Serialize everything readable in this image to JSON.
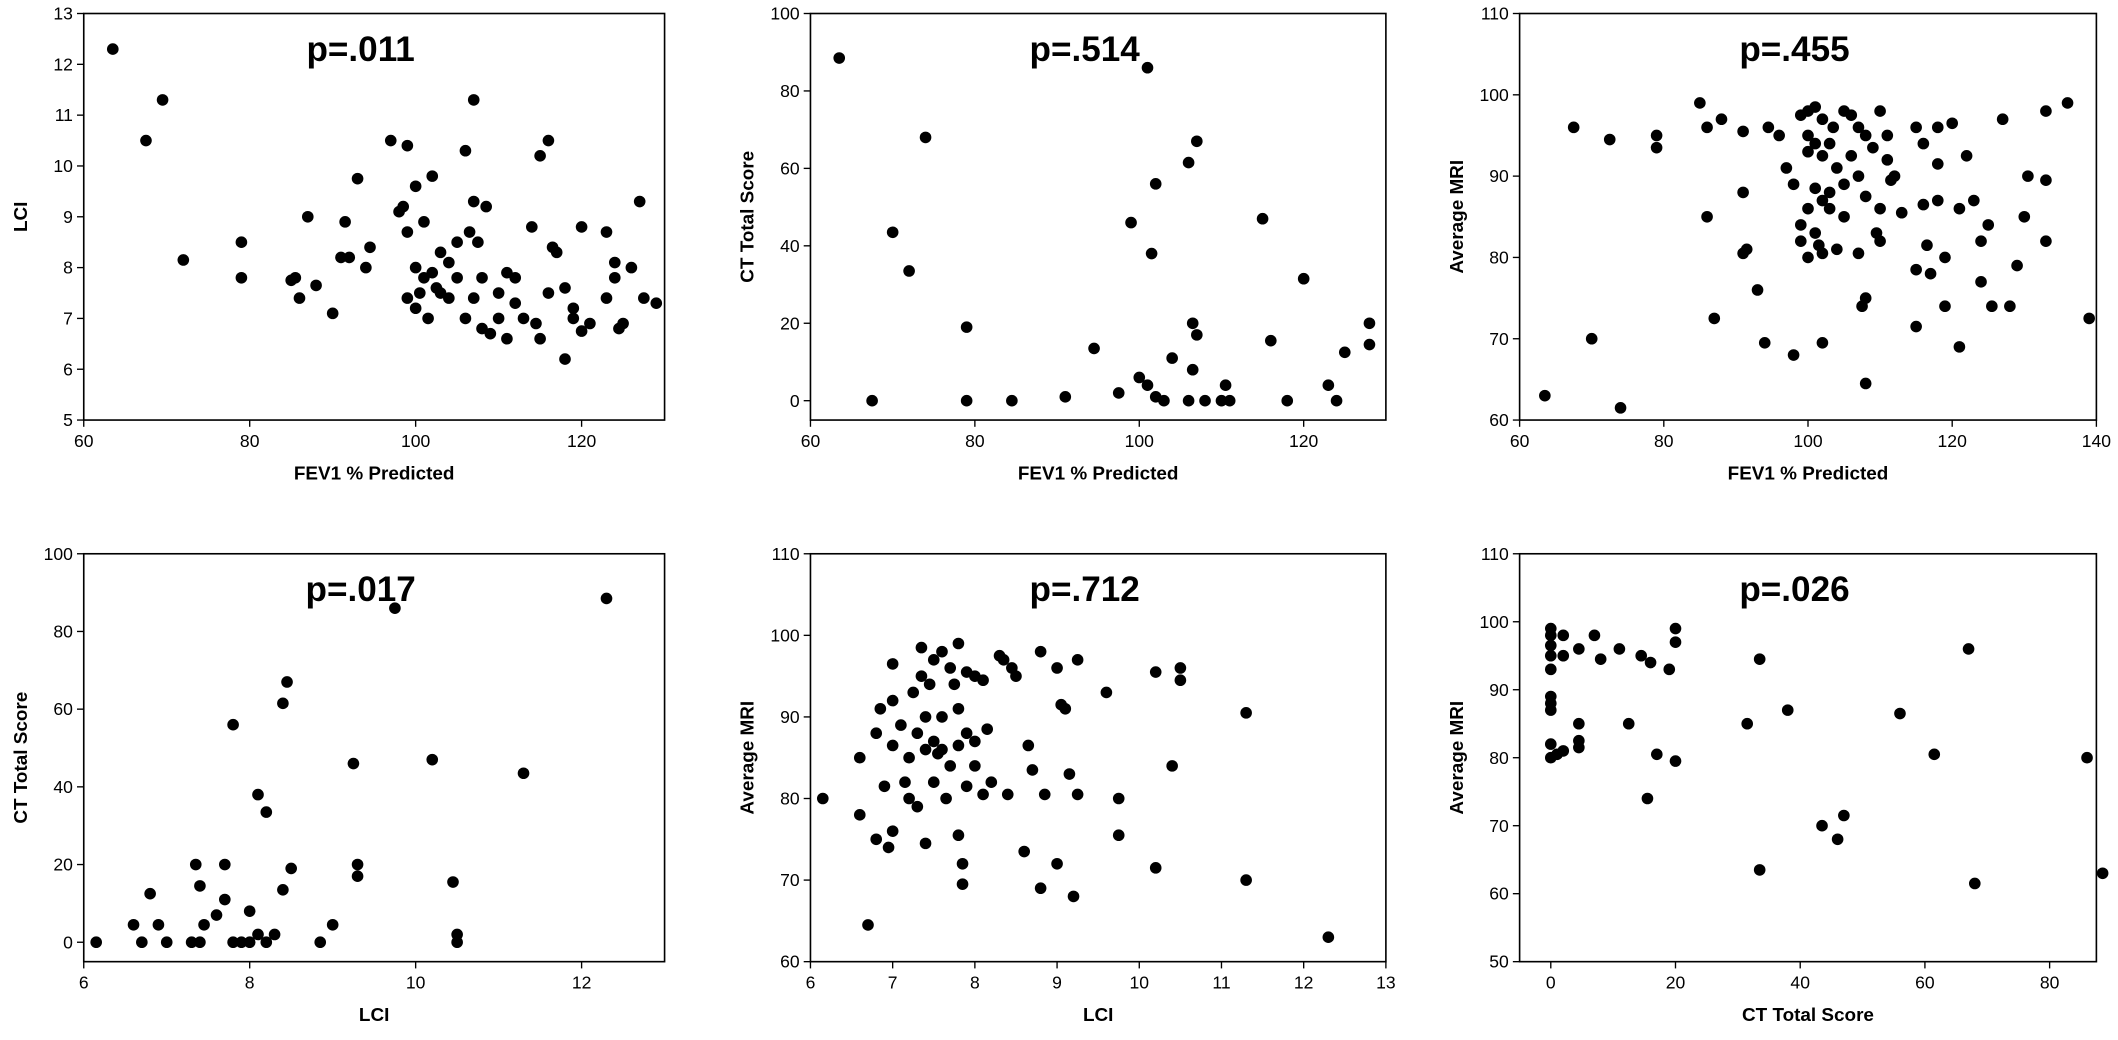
{
  "chart_data": [
    {
      "type": "scatter",
      "title": "p=.011",
      "x_label": "FEV1 % Predicted",
      "y_label": "LCI",
      "color": "#000000",
      "xlim": [
        60,
        130
      ],
      "ylim": [
        5,
        13
      ],
      "xticks": [
        60,
        80,
        100,
        120
      ],
      "yticks": [
        5,
        6,
        7,
        8,
        9,
        10,
        11,
        12,
        13
      ],
      "x": [
        63.5,
        67.5,
        69.5,
        72,
        79,
        79,
        85,
        85.5,
        86,
        87,
        88,
        90,
        91,
        91.5,
        92,
        93,
        94,
        94.5,
        97,
        98,
        99,
        98.5,
        99,
        99,
        100,
        100,
        100,
        100.5,
        101,
        101,
        101.5,
        102,
        102,
        102.5,
        103,
        103,
        104,
        104,
        105,
        105,
        106,
        106,
        106.5,
        107,
        107,
        107,
        107.5,
        108,
        108,
        108.5,
        109,
        110,
        110,
        111,
        111,
        112,
        112,
        113,
        114,
        114.5,
        115,
        115,
        116,
        116,
        116.5,
        117,
        118,
        118,
        119,
        119,
        120,
        120,
        121,
        123,
        123,
        124,
        124,
        124.5,
        125,
        126,
        127,
        127.5,
        129
      ],
      "y": [
        12.3,
        10.5,
        11.3,
        8.15,
        8.5,
        7.8,
        7.75,
        7.8,
        7.4,
        9,
        7.65,
        7.1,
        8.2,
        8.9,
        8.2,
        9.75,
        8,
        8.4,
        10.5,
        9.1,
        10.4,
        9.2,
        8.7,
        7.4,
        9.6,
        8,
        7.2,
        7.5,
        8.9,
        7.8,
        7,
        9.8,
        7.9,
        7.6,
        8.3,
        7.5,
        8.1,
        7.4,
        8.5,
        7.8,
        10.3,
        7,
        8.7,
        11.3,
        9.3,
        7.4,
        8.5,
        7.8,
        6.8,
        9.2,
        6.7,
        7.5,
        7,
        7.9,
        6.6,
        7.8,
        7.3,
        7,
        8.8,
        6.9,
        10.2,
        6.6,
        10.5,
        7.5,
        8.4,
        8.3,
        7.6,
        6.2,
        7.2,
        7,
        8.8,
        6.75,
        6.9,
        8.7,
        7.4,
        8.1,
        7.8,
        6.8,
        6.9,
        8,
        9.3,
        7.4,
        7.3
      ]
    },
    {
      "type": "scatter",
      "title": "p=.514",
      "x_label": "FEV1 % Predicted",
      "y_label": "CT Total Score",
      "color": "#000000",
      "xlim": [
        60,
        130
      ],
      "ylim": [
        -5,
        100
      ],
      "xticks": [
        60,
        80,
        100,
        120
      ],
      "yticks": [
        0,
        20,
        40,
        60,
        80,
        100
      ],
      "x": [
        63.5,
        67.5,
        70,
        72,
        74,
        79,
        79,
        84.5,
        91,
        94.5,
        97.5,
        99,
        100,
        101,
        101,
        101.5,
        102,
        102,
        103,
        104,
        106,
        106,
        106.5,
        106.5,
        107,
        107,
        108,
        110,
        110.5,
        111,
        115,
        116,
        118,
        120,
        123,
        124,
        125,
        128,
        128
      ],
      "y": [
        88.5,
        0,
        43.5,
        33.5,
        68,
        19,
        0,
        0,
        1,
        13.5,
        2,
        46,
        6,
        86,
        4,
        38,
        56,
        1,
        0,
        11,
        0,
        61.5,
        20,
        8,
        67,
        17,
        0,
        0,
        4,
        0,
        47,
        15.5,
        0,
        31.5,
        4,
        0,
        12.5,
        20,
        14.5
      ]
    },
    {
      "type": "scatter",
      "title": "p=.455",
      "x_label": "FEV1 % Predicted",
      "y_label": "Average MRI",
      "color": "#000000",
      "xlim": [
        60,
        140
      ],
      "ylim": [
        60,
        110
      ],
      "xticks": [
        60,
        80,
        100,
        120,
        140
      ],
      "yticks": [
        60,
        70,
        80,
        90,
        100,
        110
      ],
      "x": [
        63.5,
        67.5,
        70,
        72.5,
        74,
        79,
        79,
        85,
        86,
        86,
        87,
        88,
        91,
        91,
        91.5,
        91,
        93,
        94,
        94.5,
        96,
        97,
        98,
        98,
        99,
        99,
        99,
        100,
        100,
        100,
        100,
        100,
        101,
        101,
        101,
        101,
        101.5,
        102,
        102,
        102,
        102,
        102,
        103,
        103,
        103.5,
        104,
        105,
        105,
        106,
        106,
        107,
        107,
        107,
        107.5,
        108,
        108,
        108,
        108,
        109,
        109.5,
        110,
        110,
        110,
        111,
        111.5,
        113,
        115,
        115,
        115,
        116,
        116,
        116.5,
        117,
        118,
        118,
        118,
        119,
        119,
        120,
        121,
        121,
        122,
        123,
        124,
        124,
        125,
        125.5,
        127,
        128,
        129,
        130,
        130.5,
        133,
        133,
        133,
        136,
        139,
        103,
        104,
        105,
        111,
        112
      ],
      "y": [
        63,
        96,
        70,
        94.5,
        61.5,
        95,
        93.5,
        99,
        85,
        96,
        72.5,
        97,
        95.5,
        88,
        81,
        80.5,
        76,
        69.5,
        96,
        95,
        91,
        89,
        68,
        97.5,
        84,
        82,
        98,
        95,
        93,
        86,
        80,
        98.5,
        94,
        88.5,
        83,
        81.5,
        97,
        92.5,
        87,
        80.5,
        69.5,
        94,
        86,
        96,
        81,
        98,
        89,
        92.5,
        97.5,
        96,
        90,
        80.5,
        74,
        95,
        87.5,
        75,
        64.5,
        93.5,
        83,
        98,
        86,
        82,
        92,
        89.5,
        85.5,
        96,
        78.5,
        71.5,
        94,
        86.5,
        81.5,
        78,
        96,
        91.5,
        87,
        80,
        74,
        96.5,
        86,
        69,
        92.5,
        87,
        82,
        77,
        84,
        74,
        97,
        74,
        79,
        85,
        90,
        98,
        89.5,
        82,
        99,
        72.5,
        88,
        91,
        85,
        95,
        90
      ]
    },
    {
      "type": "scatter",
      "title": "p=.017",
      "x_label": "LCI",
      "y_label": "CT Total Score",
      "color": "#000000",
      "xlim": [
        6,
        13
      ],
      "ylim": [
        -5,
        100
      ],
      "xticks": [
        6,
        8,
        10,
        12
      ],
      "yticks": [
        0,
        20,
        40,
        60,
        80,
        100
      ],
      "x": [
        6.15,
        6.6,
        6.7,
        6.8,
        6.9,
        7,
        7.3,
        7.35,
        7.4,
        7.4,
        7.45,
        7.6,
        7.7,
        7.7,
        7.8,
        7.8,
        7.9,
        8,
        8,
        8.1,
        8.1,
        8.2,
        8.2,
        8.3,
        8.4,
        8.4,
        8.45,
        8.5,
        8.85,
        9,
        9.25,
        9.3,
        9.3,
        9.75,
        10.2,
        10.45,
        10.5,
        10.5,
        11.3,
        12.3
      ],
      "y": [
        0,
        4.5,
        0,
        12.5,
        4.5,
        0,
        0,
        20,
        14.5,
        0,
        4.5,
        7,
        20,
        11,
        56,
        0,
        0,
        8,
        0,
        38,
        2,
        33.5,
        0,
        2,
        61.5,
        13.5,
        67,
        19,
        0,
        4.5,
        46,
        20,
        17,
        86,
        47,
        15.5,
        2,
        0,
        43.5,
        88.5
      ]
    },
    {
      "type": "scatter",
      "title": "p=.712",
      "x_label": "LCI",
      "y_label": "Average MRI",
      "color": "#000000",
      "xlim": [
        6,
        13
      ],
      "ylim": [
        60,
        110
      ],
      "xticks": [
        6,
        7,
        8,
        9,
        10,
        11,
        12,
        13
      ],
      "yticks": [
        60,
        70,
        80,
        90,
        100,
        110
      ],
      "x": [
        6.15,
        6.6,
        6.6,
        6.7,
        6.8,
        6.8,
        6.85,
        6.9,
        6.95,
        7,
        7,
        7,
        7,
        7.1,
        7.15,
        7.2,
        7.2,
        7.25,
        7.3,
        7.3,
        7.35,
        7.35,
        7.4,
        7.4,
        7.4,
        7.45,
        7.5,
        7.5,
        7.5,
        7.55,
        7.6,
        7.6,
        7.6,
        7.65,
        7.7,
        7.7,
        7.75,
        7.8,
        7.8,
        7.8,
        7.8,
        7.85,
        7.85,
        7.9,
        7.9,
        7.9,
        8,
        8,
        8,
        8.1,
        8.1,
        8.15,
        8.2,
        8.3,
        8.35,
        8.4,
        8.45,
        8.5,
        8.6,
        8.65,
        8.7,
        8.8,
        8.8,
        8.85,
        9,
        9,
        9.05,
        9.1,
        9.15,
        9.2,
        9.25,
        9.25,
        9.6,
        9.75,
        9.75,
        10.2,
        10.2,
        10.4,
        10.5,
        10.5,
        11.3,
        11.3,
        12.3
      ],
      "y": [
        80,
        85,
        78,
        64.5,
        75,
        88,
        91,
        81.5,
        74,
        96.5,
        92,
        86.5,
        76,
        89,
        82,
        85,
        80,
        93,
        88,
        79,
        98.5,
        95,
        90,
        86,
        74.5,
        94,
        97,
        87,
        82,
        85.5,
        98,
        90,
        86,
        80,
        96,
        84,
        94,
        99,
        91,
        86.5,
        75.5,
        69.5,
        72,
        95.5,
        88,
        81.5,
        95,
        87,
        84,
        94.5,
        80.5,
        88.5,
        82,
        97.5,
        97,
        80.5,
        96,
        95,
        73.5,
        86.5,
        83.5,
        98,
        69,
        80.5,
        96,
        72,
        91.5,
        91,
        83,
        68,
        80.5,
        97,
        93,
        80,
        75.5,
        95.5,
        71.5,
        84,
        96,
        94.5,
        90.5,
        70,
        63
      ]
    },
    {
      "type": "scatter",
      "title": "p=.026",
      "x_label": "CT Total Score",
      "y_label": "Average MRI",
      "color": "#000000",
      "xlim": [
        -5,
        87.5
      ],
      "ylim": [
        50,
        110
      ],
      "xticks": [
        0,
        20,
        40,
        60,
        80
      ],
      "yticks": [
        50,
        60,
        70,
        80,
        90,
        100,
        110
      ],
      "x": [
        0,
        0,
        0,
        0,
        0,
        0,
        0,
        0,
        0,
        0,
        1,
        2,
        2,
        2,
        4.5,
        4.5,
        4.5,
        4.5,
        7,
        8,
        11,
        12.5,
        14.5,
        15.5,
        16,
        17,
        19,
        20,
        20,
        20,
        31.5,
        33.5,
        33.5,
        38,
        43.5,
        46,
        47,
        56,
        61.5,
        67,
        68,
        86,
        88.5
      ],
      "y": [
        99,
        98,
        96.5,
        95,
        93,
        89,
        88,
        87,
        82,
        80,
        80.5,
        98,
        95,
        81,
        96,
        85,
        82.5,
        81.5,
        98,
        94.5,
        96,
        85,
        95,
        74,
        94,
        80.5,
        93,
        99,
        97,
        79.5,
        85,
        94.5,
        63.5,
        87,
        70,
        68,
        71.5,
        86.5,
        80.5,
        96,
        61.5,
        80,
        63
      ]
    }
  ]
}
